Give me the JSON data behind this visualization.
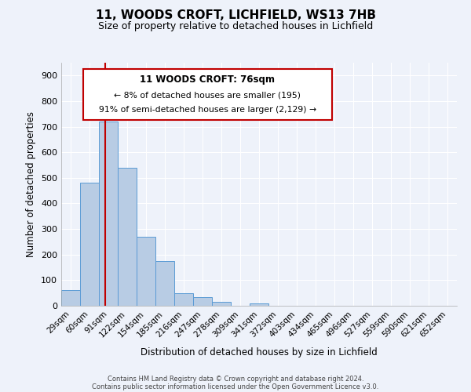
{
  "title": "11, WOODS CROFT, LICHFIELD, WS13 7HB",
  "subtitle": "Size of property relative to detached houses in Lichfield",
  "xlabel": "Distribution of detached houses by size in Lichfield",
  "ylabel": "Number of detached properties",
  "bar_labels": [
    "29sqm",
    "60sqm",
    "91sqm",
    "122sqm",
    "154sqm",
    "185sqm",
    "216sqm",
    "247sqm",
    "278sqm",
    "309sqm",
    "341sqm",
    "372sqm",
    "403sqm",
    "434sqm",
    "465sqm",
    "496sqm",
    "527sqm",
    "559sqm",
    "590sqm",
    "621sqm",
    "652sqm"
  ],
  "bar_heights": [
    60,
    480,
    720,
    540,
    270,
    175,
    48,
    35,
    15,
    0,
    8,
    0,
    0,
    0,
    0,
    0,
    0,
    0,
    0,
    0,
    0
  ],
  "bar_color": "#b8cce4",
  "bar_edge_color": "#5b9bd5",
  "ylim": [
    0,
    950
  ],
  "yticks": [
    0,
    100,
    200,
    300,
    400,
    500,
    600,
    700,
    800,
    900
  ],
  "vline_color": "#c00000",
  "annotation_title": "11 WOODS CROFT: 76sqm",
  "annotation_line1": "← 8% of detached houses are smaller (195)",
  "annotation_line2": "91% of semi-detached houses are larger (2,129) →",
  "annotation_box_color": "#ffffff",
  "annotation_box_edge": "#c00000",
  "background_color": "#eef2fa",
  "grid_color": "#ffffff",
  "footer1": "Contains HM Land Registry data © Crown copyright and database right 2024.",
  "footer2": "Contains public sector information licensed under the Open Government Licence v3.0."
}
